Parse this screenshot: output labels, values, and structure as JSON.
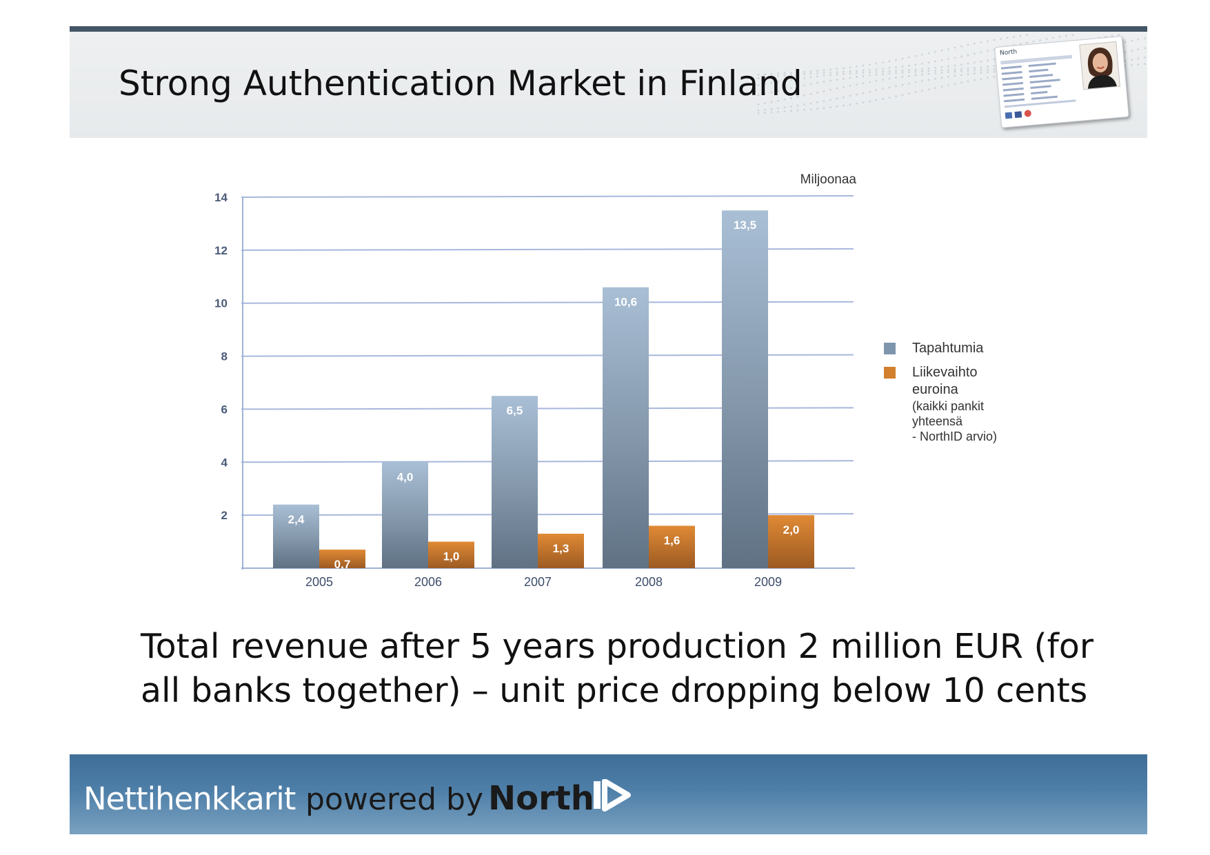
{
  "slide": {
    "title": "Strong Authentication Market in Finland",
    "caption": "Total revenue after 5 years production 2 million EUR (for all banks together) – unit price dropping below 10 cents"
  },
  "header_card": {
    "label": "North",
    "photo_icon": "person-photo-icon"
  },
  "footer": {
    "brand": "Nettihenkkarit",
    "powered_by": "powered by",
    "logo": "North",
    "logo_mark_icon": "id-play-mark-icon"
  },
  "chart_data": {
    "type": "bar",
    "unit_label": "Miljoonaa",
    "categories": [
      "2005",
      "2006",
      "2007",
      "2008",
      "2009"
    ],
    "series": [
      {
        "name": "Tapahtumia",
        "values": [
          2.4,
          4.0,
          6.5,
          10.6,
          13.5
        ],
        "labels": [
          "2,4",
          "4,0",
          "6,5",
          "10,6",
          "13,5"
        ],
        "color": "#8ea6be"
      },
      {
        "name": "Liikevaihto euroina (kaikki pankit yhteensä - NorthID arvio)",
        "legend_lines": [
          "Liikevaihto",
          "euroina",
          "(kaikki pankit",
          "yhteensä",
          "- NorthID arvio)"
        ],
        "values": [
          0.7,
          1.0,
          1.3,
          1.6,
          2.0
        ],
        "labels": [
          "0,7",
          "1,0",
          "1,3",
          "1,6",
          "2,0"
        ],
        "color": "#d27f2e"
      }
    ],
    "y_ticks": [
      "2",
      "4",
      "6",
      "8",
      "10",
      "12",
      "14"
    ],
    "ylim": [
      0,
      14
    ],
    "grid": true,
    "legend_position": "right"
  },
  "colors": {
    "header_rule": "#445566",
    "footer": "#4e7fa8",
    "bar_blue_top": "#a9bfd5",
    "bar_blue_bottom": "#5f7183",
    "bar_orange_top": "#e08a35",
    "bar_orange_bottom": "#9c5a22",
    "grid": "#9fb1d6"
  }
}
